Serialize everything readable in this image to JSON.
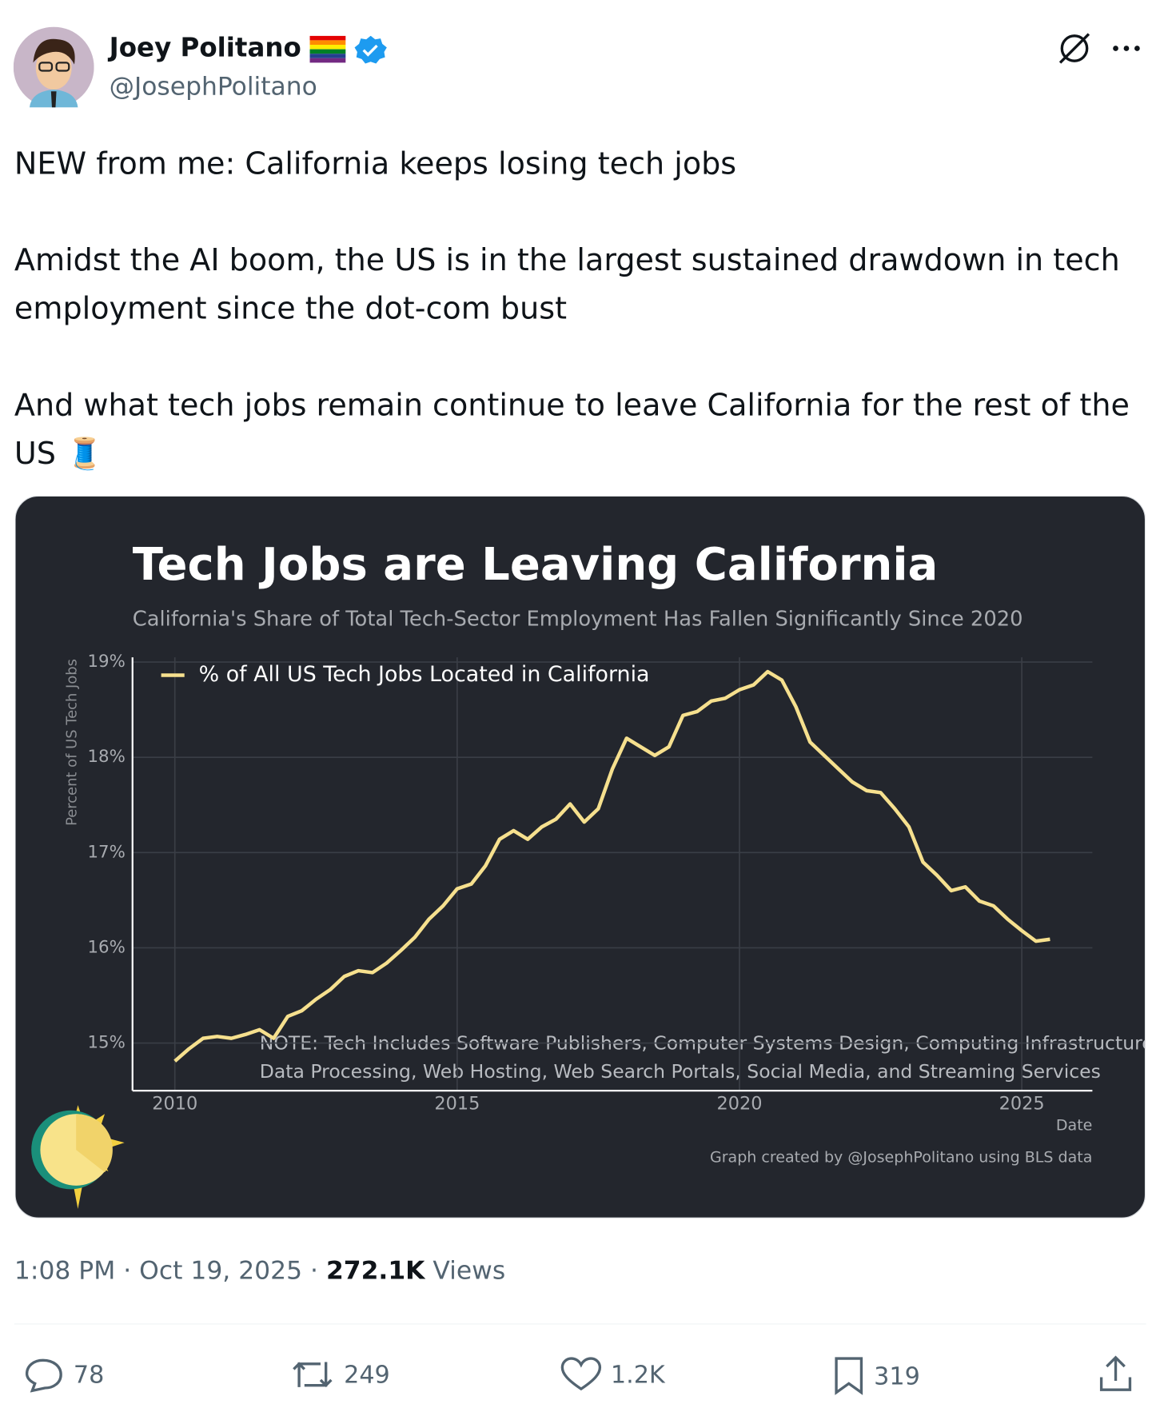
{
  "author": {
    "name": "Joey Politano",
    "handle": "@JosephPolitano"
  },
  "tweet": {
    "paragraphs": [
      "NEW from me: California keeps losing tech jobs",
      "Amidst the AI boom, the US is in the largest sustained drawdown in tech employment since the dot-com bust",
      "And what tech jobs remain continue to leave California for the rest of the US 🧵"
    ]
  },
  "chart_data": {
    "type": "line",
    "title": "Tech Jobs are Leaving California",
    "subtitle": "California's Share of Total Tech-Sector Employment Has Fallen Significantly Since 2020",
    "y_label": "Percent of US Tech Jobs",
    "x_label": "Date",
    "note": [
      "NOTE: Tech Includes Software Publishers, Computer Systems Design, Computing Infrastructure,",
      "Data Processing, Web Hosting, Web Search Portals, Social Media, and Streaming Services"
    ],
    "credit": "Graph created by @JosephPolitano using BLS data",
    "legend": "upper left",
    "grid": true,
    "x": [
      2010.0,
      2010.25,
      2010.5,
      2010.75,
      2011.0,
      2011.25,
      2011.5,
      2011.75,
      2012.0,
      2012.25,
      2012.5,
      2012.75,
      2013.0,
      2013.25,
      2013.5,
      2013.75,
      2014.0,
      2014.25,
      2014.5,
      2014.75,
      2015.0,
      2015.25,
      2015.5,
      2015.75,
      2016.0,
      2016.25,
      2016.5,
      2016.75,
      2017.0,
      2017.25,
      2017.5,
      2017.75,
      2018.0,
      2018.25,
      2018.5,
      2018.75,
      2019.0,
      2019.25,
      2019.5,
      2019.75,
      2020.0,
      2020.25,
      2020.5,
      2020.75,
      2021.0,
      2021.25,
      2021.5,
      2021.75,
      2022.0,
      2022.25,
      2022.5,
      2022.75,
      2023.0,
      2023.25,
      2023.5,
      2023.75,
      2024.0,
      2024.25,
      2024.5,
      2024.75,
      2025.0,
      2025.25,
      2025.5
    ],
    "series": [
      {
        "name": "% of All US Tech Jobs Located in California",
        "color": "#f6e08e",
        "values": [
          14.81,
          14.94,
          15.05,
          15.07,
          15.05,
          15.09,
          15.14,
          15.05,
          15.28,
          15.34,
          15.46,
          15.56,
          15.7,
          15.76,
          15.74,
          15.84,
          15.97,
          16.11,
          16.3,
          16.44,
          16.62,
          16.67,
          16.86,
          17.14,
          17.23,
          17.14,
          17.27,
          17.35,
          17.51,
          17.32,
          17.46,
          17.88,
          18.2,
          18.11,
          18.02,
          18.11,
          18.44,
          18.48,
          18.59,
          18.62,
          18.71,
          18.76,
          18.9,
          18.81,
          18.53,
          18.16,
          18.02,
          17.88,
          17.74,
          17.65,
          17.63,
          17.46,
          17.27,
          16.9,
          16.76,
          16.6,
          16.64,
          16.49,
          16.44,
          16.3,
          16.18,
          16.07,
          16.09
        ]
      }
    ],
    "xlim": [
      2009.25,
      2026.25
    ],
    "xticks": [
      2010,
      2015,
      2020,
      2025
    ],
    "ylim": [
      14.5,
      19.05
    ],
    "yticks": [
      {
        "value": 15,
        "label": "15%"
      },
      {
        "value": 16,
        "label": "16%"
      },
      {
        "value": 17,
        "label": "17%"
      },
      {
        "value": 18,
        "label": "18%"
      },
      {
        "value": 19,
        "label": "19%"
      }
    ]
  },
  "meta": {
    "time": "1:08 PM · Oct 19, 2025 · ",
    "views": "272.1K",
    "views_label": " Views"
  },
  "actions": {
    "replies": "78",
    "reposts": "249",
    "likes": "1.2K",
    "bookmarks": "319"
  }
}
